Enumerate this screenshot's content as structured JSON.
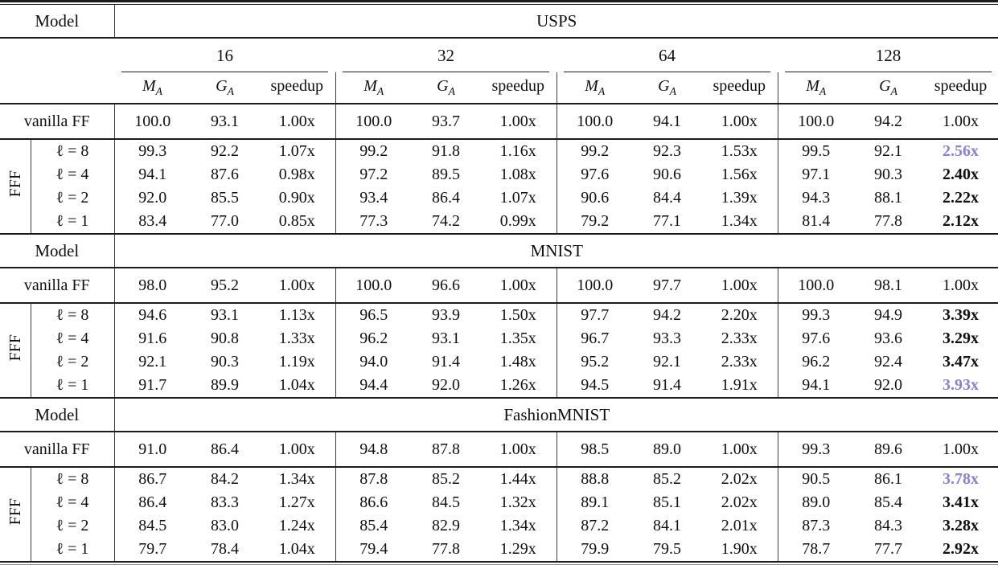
{
  "table": {
    "model_label": "Model",
    "fff_label": "FFF",
    "group_headers": [
      "16",
      "32",
      "64",
      "128"
    ],
    "subcol_headers": [
      {
        "base": "M",
        "sub": "A"
      },
      {
        "base": "G",
        "sub": "A"
      },
      {
        "base": "speedup",
        "sub": ""
      }
    ],
    "colors": {
      "highlight_purple": "#8983c9",
      "rule_color": "#1b1b1b",
      "bar_color": "#3c3c3c"
    },
    "sections": [
      {
        "dataset": "USPS",
        "vanilla": {
          "label": "vanilla FF",
          "cells": [
            "100.0",
            "93.1",
            "1.00x",
            "100.0",
            "93.7",
            "1.00x",
            "100.0",
            "94.1",
            "1.00x",
            "100.0",
            "94.2",
            "1.00x"
          ]
        },
        "fff_rows": [
          {
            "label": "ℓ = 8",
            "cells": [
              "99.3",
              "92.2",
              "1.07x",
              "99.2",
              "91.8",
              "1.16x",
              "99.2",
              "92.3",
              "1.53x",
              "99.5",
              "92.1",
              "2.56x"
            ],
            "last_emphasis": "purple"
          },
          {
            "label": "ℓ = 4",
            "cells": [
              "94.1",
              "87.6",
              "0.98x",
              "97.2",
              "89.5",
              "1.08x",
              "97.6",
              "90.6",
              "1.56x",
              "97.1",
              "90.3",
              "2.40x"
            ],
            "last_emphasis": "bold"
          },
          {
            "label": "ℓ = 2",
            "cells": [
              "92.0",
              "85.5",
              "0.90x",
              "93.4",
              "86.4",
              "1.07x",
              "90.6",
              "84.4",
              "1.39x",
              "94.3",
              "88.1",
              "2.22x"
            ],
            "last_emphasis": "bold"
          },
          {
            "label": "ℓ = 1",
            "cells": [
              "83.4",
              "77.0",
              "0.85x",
              "77.3",
              "74.2",
              "0.99x",
              "79.2",
              "77.1",
              "1.34x",
              "81.4",
              "77.8",
              "2.12x"
            ],
            "last_emphasis": "bold"
          }
        ]
      },
      {
        "dataset": "MNIST",
        "vanilla": {
          "label": "vanilla FF",
          "cells": [
            "98.0",
            "95.2",
            "1.00x",
            "100.0",
            "96.6",
            "1.00x",
            "100.0",
            "97.7",
            "1.00x",
            "100.0",
            "98.1",
            "1.00x"
          ]
        },
        "fff_rows": [
          {
            "label": "ℓ = 8",
            "cells": [
              "94.6",
              "93.1",
              "1.13x",
              "96.5",
              "93.9",
              "1.50x",
              "97.7",
              "94.2",
              "2.20x",
              "99.3",
              "94.9",
              "3.39x"
            ],
            "last_emphasis": "bold"
          },
          {
            "label": "ℓ = 4",
            "cells": [
              "91.6",
              "90.8",
              "1.33x",
              "96.2",
              "93.1",
              "1.35x",
              "96.7",
              "93.3",
              "2.33x",
              "97.6",
              "93.6",
              "3.29x"
            ],
            "last_emphasis": "bold"
          },
          {
            "label": "ℓ = 2",
            "cells": [
              "92.1",
              "90.3",
              "1.19x",
              "94.0",
              "91.4",
              "1.48x",
              "95.2",
              "92.1",
              "2.33x",
              "96.2",
              "92.4",
              "3.47x"
            ],
            "last_emphasis": "bold"
          },
          {
            "label": "ℓ = 1",
            "cells": [
              "91.7",
              "89.9",
              "1.04x",
              "94.4",
              "92.0",
              "1.26x",
              "94.5",
              "91.4",
              "1.91x",
              "94.1",
              "92.0",
              "3.93x"
            ],
            "last_emphasis": "purple"
          }
        ]
      },
      {
        "dataset": "FashionMNIST",
        "vanilla": {
          "label": "vanilla FF",
          "cells": [
            "91.0",
            "86.4",
            "1.00x",
            "94.8",
            "87.8",
            "1.00x",
            "98.5",
            "89.0",
            "1.00x",
            "99.3",
            "89.6",
            "1.00x"
          ]
        },
        "fff_rows": [
          {
            "label": "ℓ = 8",
            "cells": [
              "86.7",
              "84.2",
              "1.34x",
              "87.8",
              "85.2",
              "1.44x",
              "88.8",
              "85.2",
              "2.02x",
              "90.5",
              "86.1",
              "3.78x"
            ],
            "last_emphasis": "purple"
          },
          {
            "label": "ℓ = 4",
            "cells": [
              "86.4",
              "83.3",
              "1.27x",
              "86.6",
              "84.5",
              "1.32x",
              "89.1",
              "85.1",
              "2.02x",
              "89.0",
              "85.4",
              "3.41x"
            ],
            "last_emphasis": "bold"
          },
          {
            "label": "ℓ = 2",
            "cells": [
              "84.5",
              "83.0",
              "1.24x",
              "85.4",
              "82.9",
              "1.34x",
              "87.2",
              "84.1",
              "2.01x",
              "87.3",
              "84.3",
              "3.28x"
            ],
            "last_emphasis": "bold"
          },
          {
            "label": "ℓ = 1",
            "cells": [
              "79.7",
              "78.4",
              "1.04x",
              "79.4",
              "77.8",
              "1.29x",
              "79.9",
              "79.5",
              "1.90x",
              "78.7",
              "77.7",
              "2.92x"
            ],
            "last_emphasis": "bold"
          }
        ]
      }
    ]
  }
}
